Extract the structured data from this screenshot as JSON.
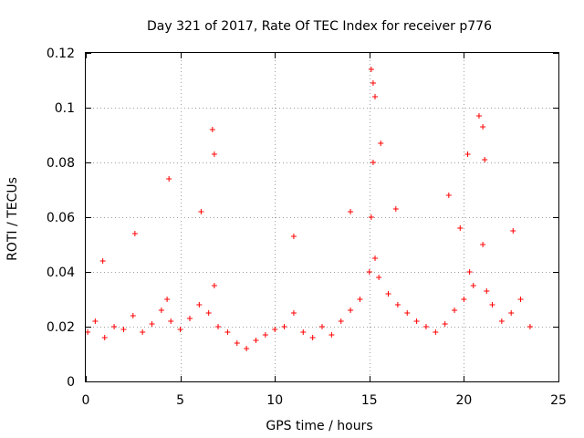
{
  "chart_data": {
    "type": "scatter",
    "title": "Day 321 of 2017, Rate Of TEC Index for receiver p776",
    "xlabel": "GPS time / hours",
    "ylabel": "ROTI / TECUs",
    "xlim": [
      0,
      25
    ],
    "ylim": [
      0,
      0.12
    ],
    "xticks": [
      0,
      5,
      10,
      15,
      20,
      25
    ],
    "xtick_labels": [
      "0",
      "5",
      "10",
      "15",
      "20",
      "25"
    ],
    "yticks": [
      0,
      0.02,
      0.04,
      0.06,
      0.08,
      0.1,
      0.12
    ],
    "ytick_labels": [
      "0",
      "0.02",
      "0.04",
      "0.06",
      "0.08",
      "0.1",
      "0.12"
    ],
    "grid": true,
    "legend": "none",
    "marker": "plus",
    "color": "#ff0000",
    "series": [
      {
        "x": [
          0.1,
          0.5,
          1.0,
          1.5,
          2.0,
          2.5,
          3.0,
          3.5,
          4.0,
          4.3,
          4.5,
          5.0,
          5.5,
          6.0,
          6.5,
          6.8,
          7.0,
          7.5,
          8.0,
          8.5,
          9.0,
          9.5,
          10.0,
          10.5,
          11.0,
          11.5,
          12.0,
          12.5,
          13.0,
          13.5,
          14.0,
          14.5,
          15.0,
          15.1,
          15.2,
          15.3,
          15.5,
          16.0,
          16.5,
          17.0,
          17.5,
          18.0,
          18.5,
          19.0,
          19.5,
          20.0,
          20.3,
          20.5,
          21.0,
          21.2,
          21.5,
          22.0,
          22.5,
          23.0,
          23.5,
          0.9,
          2.6,
          4.4,
          6.1,
          6.7,
          6.8,
          11.0,
          14.0,
          15.1,
          15.2,
          15.3,
          15.6,
          16.4,
          19.2,
          19.8,
          20.2,
          20.8,
          21.0,
          21.1,
          22.6
        ],
        "y": [
          0.018,
          0.022,
          0.016,
          0.02,
          0.019,
          0.024,
          0.018,
          0.021,
          0.026,
          0.03,
          0.022,
          0.019,
          0.023,
          0.028,
          0.025,
          0.035,
          0.02,
          0.018,
          0.014,
          0.012,
          0.015,
          0.017,
          0.019,
          0.02,
          0.025,
          0.018,
          0.016,
          0.02,
          0.017,
          0.022,
          0.026,
          0.03,
          0.04,
          0.06,
          0.08,
          0.045,
          0.038,
          0.032,
          0.028,
          0.025,
          0.022,
          0.02,
          0.018,
          0.021,
          0.026,
          0.03,
          0.04,
          0.035,
          0.05,
          0.033,
          0.028,
          0.022,
          0.025,
          0.03,
          0.02,
          0.044,
          0.054,
          0.074,
          0.062,
          0.092,
          0.083,
          0.053,
          0.062,
          0.114,
          0.109,
          0.104,
          0.087,
          0.063,
          0.068,
          0.056,
          0.083,
          0.097,
          0.093,
          0.081,
          0.055
        ]
      }
    ]
  }
}
